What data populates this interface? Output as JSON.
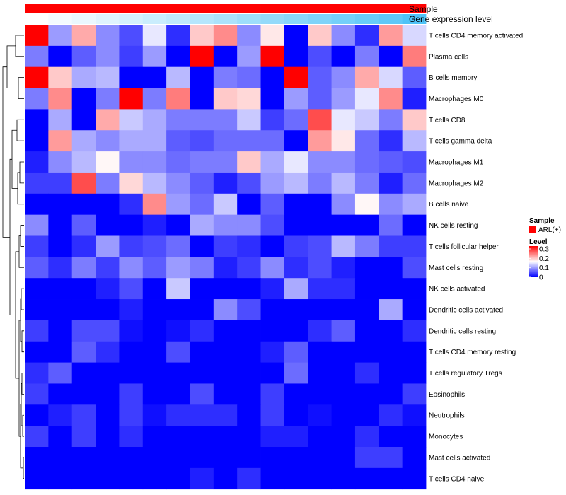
{
  "chart_data": {
    "type": "heatmap",
    "title": "",
    "colors": {
      "low": "#0000FF",
      "mid": "#FFFFFF",
      "high": "#FF0000",
      "sample_bar": "#FF0000",
      "expression_low": "#FFFFFF",
      "expression_high": "#4FC3F7"
    },
    "annotations": {
      "sample": {
        "label": "Sample",
        "groups": [
          "ARL(+)"
        ]
      },
      "expression": {
        "label": "Gene expression level"
      }
    },
    "legend": {
      "sample_title": "Sample",
      "sample_entry": "ARL(+)",
      "level_title": "Level",
      "ticks": [
        "0.3",
        "0.2",
        "0.1",
        "0"
      ],
      "range": [
        0,
        0.33
      ],
      "placement": "right"
    },
    "n_samples": 17,
    "rows": [
      "T cells CD4 memory activated",
      "Plasma cells",
      "B cells memory",
      "Macrophages M0",
      "T cells CD8",
      "T cells gamma delta",
      "Macrophages M1",
      "Macrophages M2",
      "B cells naive",
      "NK cells resting",
      "T cells follicular helper",
      "Mast cells resting",
      "NK cells activated",
      "Dendritic cells activated",
      "Dendritic cells resting",
      "T cells CD4 memory resting",
      "T cells regulatory  Tregs",
      "Eosinophils",
      "Neutrophils",
      "Monocytes",
      "Mast cells activated",
      "T cells CD4 naive"
    ],
    "values": [
      [
        0.33,
        0.1,
        0.22,
        0.09,
        0.05,
        0.15,
        0.03,
        0.2,
        0.24,
        0.09,
        0.18,
        0.0,
        0.2,
        0.09,
        0.03,
        0.23,
        0.14
      ],
      [
        0.08,
        0.0,
        0.06,
        0.09,
        0.04,
        0.1,
        0.0,
        0.33,
        0.0,
        0.1,
        0.33,
        0.0,
        0.05,
        0.0,
        0.08,
        0.0,
        0.25
      ],
      [
        0.33,
        0.2,
        0.11,
        0.12,
        0.0,
        0.0,
        0.12,
        0.0,
        0.08,
        0.07,
        0.0,
        0.33,
        0.06,
        0.09,
        0.22,
        0.14,
        0.06
      ],
      [
        0.08,
        0.24,
        0.0,
        0.08,
        0.33,
        0.08,
        0.25,
        0.0,
        0.2,
        0.19,
        0.0,
        0.1,
        0.06,
        0.1,
        0.15,
        0.24,
        0.02
      ],
      [
        0.0,
        0.11,
        0.0,
        0.22,
        0.13,
        0.11,
        0.08,
        0.08,
        0.08,
        0.13,
        0.04,
        0.07,
        0.28,
        0.15,
        0.13,
        0.08,
        0.2
      ],
      [
        0.0,
        0.23,
        0.11,
        0.09,
        0.11,
        0.11,
        0.06,
        0.05,
        0.07,
        0.07,
        0.07,
        0.0,
        0.23,
        0.18,
        0.07,
        0.03,
        0.12
      ],
      [
        0.02,
        0.09,
        0.12,
        0.17,
        0.09,
        0.09,
        0.07,
        0.08,
        0.08,
        0.2,
        0.11,
        0.15,
        0.09,
        0.09,
        0.07,
        0.06,
        0.05
      ],
      [
        0.04,
        0.04,
        0.28,
        0.08,
        0.19,
        0.12,
        0.09,
        0.06,
        0.02,
        0.05,
        0.1,
        0.12,
        0.08,
        0.12,
        0.08,
        0.02,
        0.07
      ],
      [
        0.0,
        0.0,
        0.0,
        0.0,
        0.03,
        0.24,
        0.1,
        0.07,
        0.13,
        0.0,
        0.06,
        0.0,
        0.0,
        0.09,
        0.17,
        0.09,
        0.11
      ],
      [
        0.09,
        0.0,
        0.06,
        0.0,
        0.0,
        0.02,
        0.0,
        0.11,
        0.09,
        0.09,
        0.05,
        0.0,
        0.0,
        0.0,
        0.0,
        0.07,
        0.0
      ],
      [
        0.04,
        0.0,
        0.03,
        0.1,
        0.04,
        0.05,
        0.07,
        0.0,
        0.04,
        0.03,
        0.0,
        0.04,
        0.05,
        0.12,
        0.08,
        0.04,
        0.04
      ],
      [
        0.06,
        0.03,
        0.08,
        0.04,
        0.09,
        0.06,
        0.1,
        0.08,
        0.02,
        0.04,
        0.09,
        0.03,
        0.05,
        0.02,
        0.0,
        0.0,
        0.05
      ],
      [
        0.0,
        0.0,
        0.0,
        0.02,
        0.05,
        0.0,
        0.13,
        0.0,
        0.0,
        0.0,
        0.02,
        0.11,
        0.03,
        0.03,
        0.0,
        0.0,
        0.0
      ],
      [
        0.0,
        0.0,
        0.0,
        0.0,
        0.02,
        0.0,
        0.0,
        0.0,
        0.09,
        0.05,
        0.0,
        0.0,
        0.0,
        0.0,
        0.0,
        0.11,
        0.0
      ],
      [
        0.04,
        0.0,
        0.05,
        0.05,
        0.01,
        0.0,
        0.01,
        0.03,
        0.0,
        0.0,
        0.0,
        0.0,
        0.03,
        0.06,
        0.0,
        0.0,
        0.03
      ],
      [
        0.0,
        0.0,
        0.06,
        0.03,
        0.0,
        0.0,
        0.05,
        0.0,
        0.0,
        0.0,
        0.02,
        0.06,
        0.0,
        0.0,
        0.0,
        0.0,
        0.0
      ],
      [
        0.03,
        0.06,
        0.0,
        0.0,
        0.0,
        0.0,
        0.0,
        0.0,
        0.0,
        0.0,
        0.0,
        0.07,
        0.0,
        0.0,
        0.03,
        0.0,
        0.0
      ],
      [
        0.04,
        0.0,
        0.0,
        0.0,
        0.04,
        0.0,
        0.0,
        0.05,
        0.0,
        0.0,
        0.04,
        0.0,
        0.0,
        0.0,
        0.0,
        0.0,
        0.04
      ],
      [
        0.0,
        0.02,
        0.04,
        0.0,
        0.04,
        0.01,
        0.03,
        0.03,
        0.03,
        0.0,
        0.04,
        0.0,
        0.01,
        0.0,
        0.0,
        0.03,
        0.01
      ],
      [
        0.04,
        0.0,
        0.04,
        0.0,
        0.03,
        0.0,
        0.0,
        0.0,
        0.0,
        0.0,
        0.02,
        0.02,
        0.0,
        0.0,
        0.03,
        0.0,
        0.0
      ],
      [
        0.0,
        0.0,
        0.0,
        0.0,
        0.0,
        0.0,
        0.0,
        0.0,
        0.0,
        0.0,
        0.0,
        0.0,
        0.0,
        0.0,
        0.04,
        0.04,
        0.0
      ],
      [
        0.0,
        0.0,
        0.0,
        0.0,
        0.0,
        0.0,
        0.0,
        0.02,
        0.0,
        0.03,
        0.0,
        0.0,
        0.0,
        0.0,
        0.0,
        0.0,
        0.0
      ]
    ],
    "expression_annotation": [
      0.0,
      0.06,
      0.12,
      0.18,
      0.24,
      0.3,
      0.36,
      0.42,
      0.48,
      0.55,
      0.61,
      0.67,
      0.73,
      0.79,
      0.85,
      0.91,
      1.0
    ]
  }
}
